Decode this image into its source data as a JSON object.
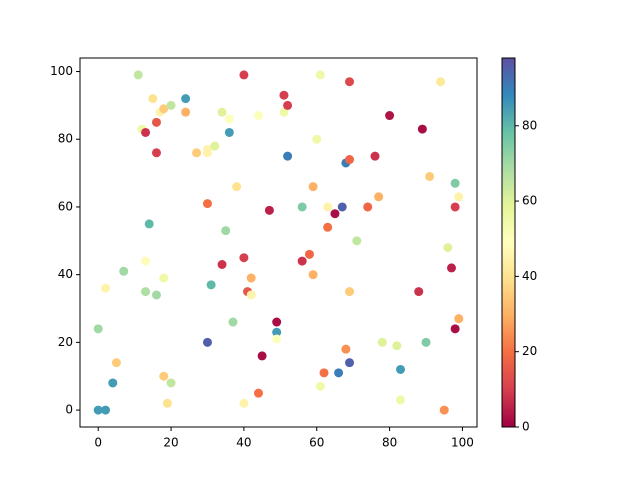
{
  "chart_data": {
    "type": "scatter",
    "x": [
      0,
      2,
      4,
      0,
      2,
      5,
      7,
      11,
      12,
      13,
      13,
      13,
      14,
      15,
      16,
      16,
      16,
      17,
      18,
      18,
      18,
      19,
      20,
      20,
      24,
      24,
      27,
      30,
      30,
      30,
      30,
      31,
      32,
      34,
      34,
      35,
      36,
      36,
      37,
      38,
      40,
      40,
      40,
      41,
      42,
      42,
      44,
      44,
      45,
      47,
      49,
      49,
      49,
      51,
      51,
      52,
      52,
      56,
      56,
      58,
      59,
      59,
      60,
      61,
      61,
      62,
      63,
      63,
      65,
      66,
      67,
      68,
      68,
      69,
      69,
      69,
      69,
      71,
      74,
      76,
      77,
      78,
      80,
      82,
      83,
      83,
      88,
      89,
      90,
      91,
      94,
      95,
      96,
      97,
      98,
      98,
      98,
      99,
      99
    ],
    "y": [
      0,
      0,
      8,
      24,
      36,
      14,
      41,
      99,
      83,
      82,
      44,
      35,
      55,
      92,
      85,
      76,
      34,
      88,
      89,
      39,
      10,
      2,
      90,
      8,
      92,
      88,
      76,
      77,
      76,
      61,
      20,
      37,
      78,
      88,
      43,
      53,
      86,
      82,
      26,
      66,
      99,
      45,
      2,
      35,
      39,
      34,
      87,
      5,
      16,
      59,
      26,
      23,
      21,
      93,
      88,
      90,
      75,
      60,
      44,
      46,
      66,
      40,
      80,
      99,
      7,
      11,
      54,
      60,
      58,
      11,
      60,
      73,
      18,
      74,
      35,
      97,
      14,
      50,
      60,
      75,
      63,
      20,
      87,
      19,
      12,
      3,
      35,
      83,
      20,
      69,
      97,
      0,
      48,
      42,
      67,
      60,
      24,
      63,
      27
    ],
    "c": [
      85,
      85,
      85,
      70,
      45,
      35,
      70,
      65,
      55,
      8,
      48,
      68,
      80,
      40,
      15,
      10,
      70,
      45,
      35,
      55,
      35,
      40,
      65,
      65,
      85,
      30,
      35,
      45,
      45,
      20,
      95,
      80,
      60,
      60,
      8,
      70,
      50,
      85,
      70,
      40,
      10,
      10,
      45,
      15,
      30,
      45,
      50,
      20,
      2,
      5,
      2,
      85,
      50,
      10,
      55,
      10,
      90,
      75,
      8,
      18,
      30,
      30,
      55,
      55,
      55,
      20,
      20,
      45,
      2,
      90,
      95,
      90,
      25,
      18,
      35,
      12,
      95,
      65,
      18,
      8,
      30,
      60,
      3,
      60,
      85,
      55,
      8,
      2,
      75,
      35,
      42,
      25,
      60,
      5,
      75,
      10,
      2,
      45,
      30
    ],
    "colormap": [
      "#9e0142",
      "#d53e4f",
      "#f46d43",
      "#fdae61",
      "#fee08b",
      "#ffffbf",
      "#e6f598",
      "#abdda4",
      "#66c2a5",
      "#3288bd",
      "#5e4fa2"
    ],
    "clim": [
      0,
      98
    ],
    "cticks": [
      0,
      20,
      40,
      60,
      80
    ],
    "xlim": [
      -5,
      104
    ],
    "ylim": [
      -5,
      104
    ],
    "xticks": [
      0,
      20,
      40,
      60,
      80,
      100
    ],
    "yticks": [
      0,
      20,
      40,
      60,
      80,
      100
    ]
  }
}
